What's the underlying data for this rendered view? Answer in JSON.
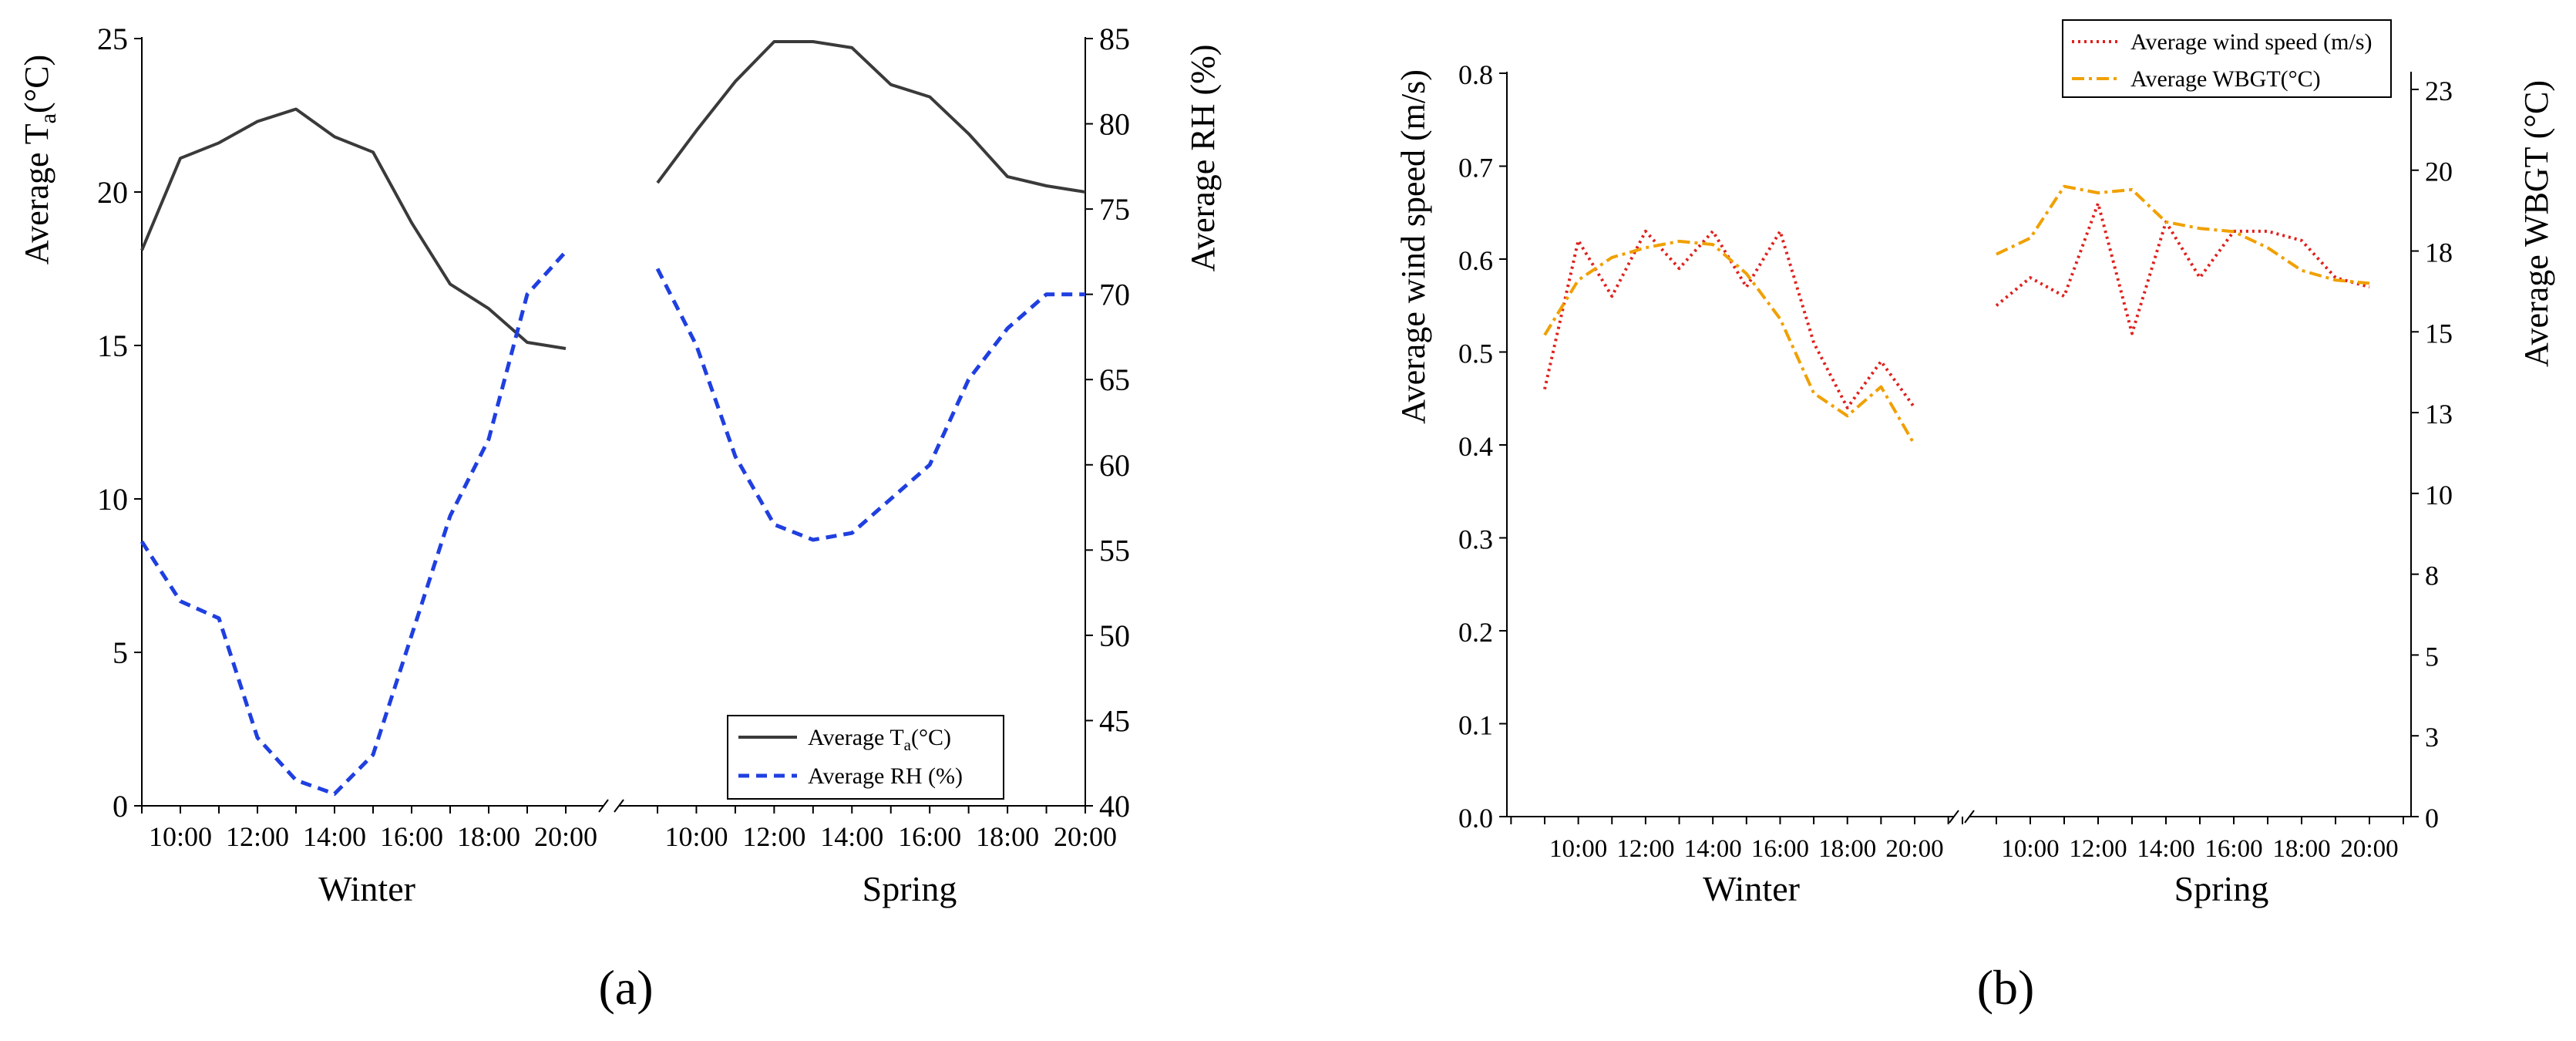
{
  "figure_labels": {
    "a": "(a)",
    "b": "(b)"
  },
  "chart_data": [
    {
      "id": "a",
      "type": "line",
      "xlabel_winter": "Winter",
      "xlabel_spring": "Spring",
      "ylabel_left_main": "Average T",
      "ylabel_left_sub": "a",
      "ylabel_left_unit": "(°C)",
      "ylabel_right": "Average RH (%)",
      "ylim_left": [
        0,
        25
      ],
      "ylim_right": [
        40,
        85
      ],
      "yticks_left": [
        "0",
        "5",
        "10",
        "15",
        "20",
        "25"
      ],
      "yticks_right": [
        "40",
        "45",
        "50",
        "55",
        "60",
        "65",
        "70",
        "75",
        "80",
        "85"
      ],
      "xticks": [
        "10:00",
        "12:00",
        "14:00",
        "16:00",
        "18:00",
        "20:00"
      ],
      "x_hours": [
        9,
        10,
        11,
        12,
        13,
        14,
        15,
        16,
        17,
        18,
        19,
        20
      ],
      "legend": {
        "ta_main": "Average T",
        "ta_sub": "a",
        "ta_unit": "(°C)",
        "rh": "Average RH (%)"
      },
      "series": [
        {
          "name": "Average Ta (°C)",
          "axis": "left",
          "color": "#3a3a3a",
          "style": "solid",
          "winter": [
            18.1,
            21.1,
            21.6,
            22.3,
            22.7,
            21.8,
            21.3,
            19.0,
            17.0,
            16.2,
            15.1,
            14.9
          ],
          "spring": [
            20.3,
            22.0,
            23.6,
            24.9,
            24.9,
            24.7,
            23.5,
            23.1,
            21.9,
            20.5,
            20.2,
            20.0
          ]
        },
        {
          "name": "Average RH (%)",
          "axis": "right",
          "color": "#1f3fe0",
          "style": "dashed",
          "winter": [
            55.5,
            52.0,
            51.0,
            44.0,
            41.5,
            40.7,
            43.0,
            50.0,
            57.0,
            61.5,
            70.0,
            72.5
          ],
          "spring": [
            71.5,
            67.0,
            60.5,
            56.5,
            55.6,
            56.0,
            58.0,
            60.0,
            65.0,
            68.0,
            70.0,
            70.0
          ]
        }
      ]
    },
    {
      "id": "b",
      "type": "line",
      "xlabel_winter": "Winter",
      "xlabel_spring": "Spring",
      "ylabel_left": "Average wind speed (m/s)",
      "ylabel_right": "Average WBGT (°C)",
      "ylim_left": [
        0,
        0.8
      ],
      "ylim_right": [
        0,
        23
      ],
      "yticks_left": [
        "0.0",
        "0.1",
        "0.2",
        "0.3",
        "0.4",
        "0.5",
        "0.6",
        "0.7",
        "0.8"
      ],
      "yticks_right": [
        "0",
        "3",
        "5",
        "8",
        "10",
        "13",
        "15",
        "18",
        "20",
        "23"
      ],
      "yticks_right_values": [
        0,
        2.5,
        5,
        7.5,
        10,
        12.5,
        15,
        17.5,
        20,
        22.5
      ],
      "xticks": [
        "10:00",
        "12:00",
        "14:00",
        "16:00",
        "18:00",
        "20:00"
      ],
      "x_hours": [
        9,
        10,
        11,
        12,
        13,
        14,
        15,
        16,
        17,
        18,
        19,
        20
      ],
      "legend": {
        "wind": "Average wind speed (m/s)",
        "wbgt": "Average WBGT(°C)"
      },
      "series": [
        {
          "name": "Average wind speed (m/s)",
          "axis": "left",
          "color": "#e0201c",
          "style": "dotted",
          "winter": [
            0.46,
            0.62,
            0.56,
            0.63,
            0.59,
            0.63,
            0.57,
            0.63,
            0.51,
            0.44,
            0.49,
            0.44
          ],
          "spring": [
            0.55,
            0.58,
            0.56,
            0.66,
            0.52,
            0.64,
            0.58,
            0.63,
            0.63,
            0.62,
            0.58,
            0.57
          ]
        },
        {
          "name": "Average WBGT (°C)",
          "axis": "right",
          "color": "#f0a000",
          "style": "dashdot",
          "winter": [
            14.9,
            16.6,
            17.3,
            17.6,
            17.8,
            17.7,
            16.8,
            15.4,
            13.1,
            12.4,
            13.3,
            11.5
          ],
          "spring": [
            17.4,
            17.9,
            19.5,
            19.3,
            19.4,
            18.4,
            18.2,
            18.1,
            17.6,
            16.9,
            16.6,
            16.5
          ]
        }
      ]
    }
  ]
}
